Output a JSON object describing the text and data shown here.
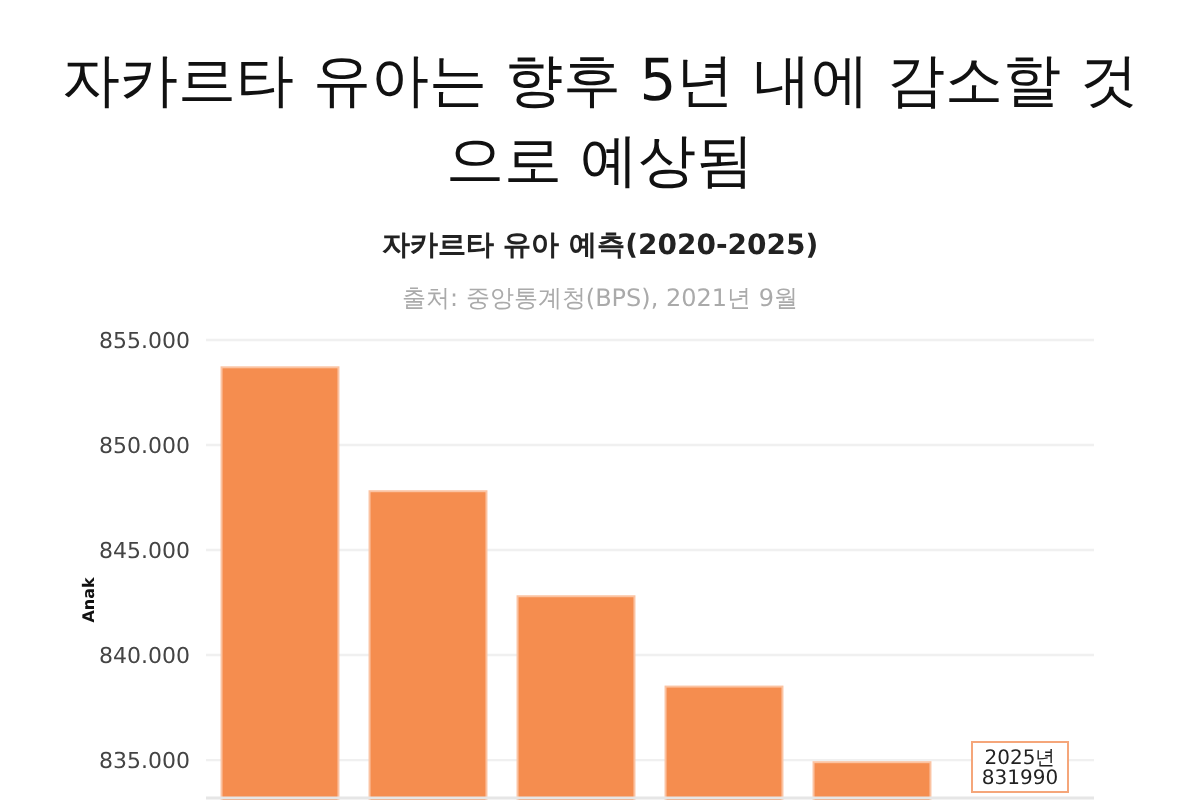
{
  "chart_data": {
    "type": "bar",
    "title": "자카르타 유아는 향후 5년 내에 감소할 것으로 예상됨",
    "subtitle": "자카르타 유아 예측(2020-2025)",
    "ylabel": "Anak",
    "annotations": [
      "출처: 중앙통계청(BPS), 2021년 9월",
      "2025년 831990"
    ],
    "categories": [
      null,
      null,
      null,
      null,
      null,
      null
    ],
    "values": [
      853700,
      847800,
      842800,
      838500,
      834900,
      null
    ],
    "color": "#f58d4f",
    "ylim": [
      833100,
      855000
    ],
    "yticks": [
      {
        "value": 835000,
        "label": "835.000"
      },
      {
        "value": 840000,
        "label": "840.000"
      },
      {
        "value": 845000,
        "label": "845.000"
      },
      {
        "value": 850000,
        "label": "850.000"
      },
      {
        "value": 855000,
        "label": "855.000"
      }
    ],
    "grid": "y"
  }
}
